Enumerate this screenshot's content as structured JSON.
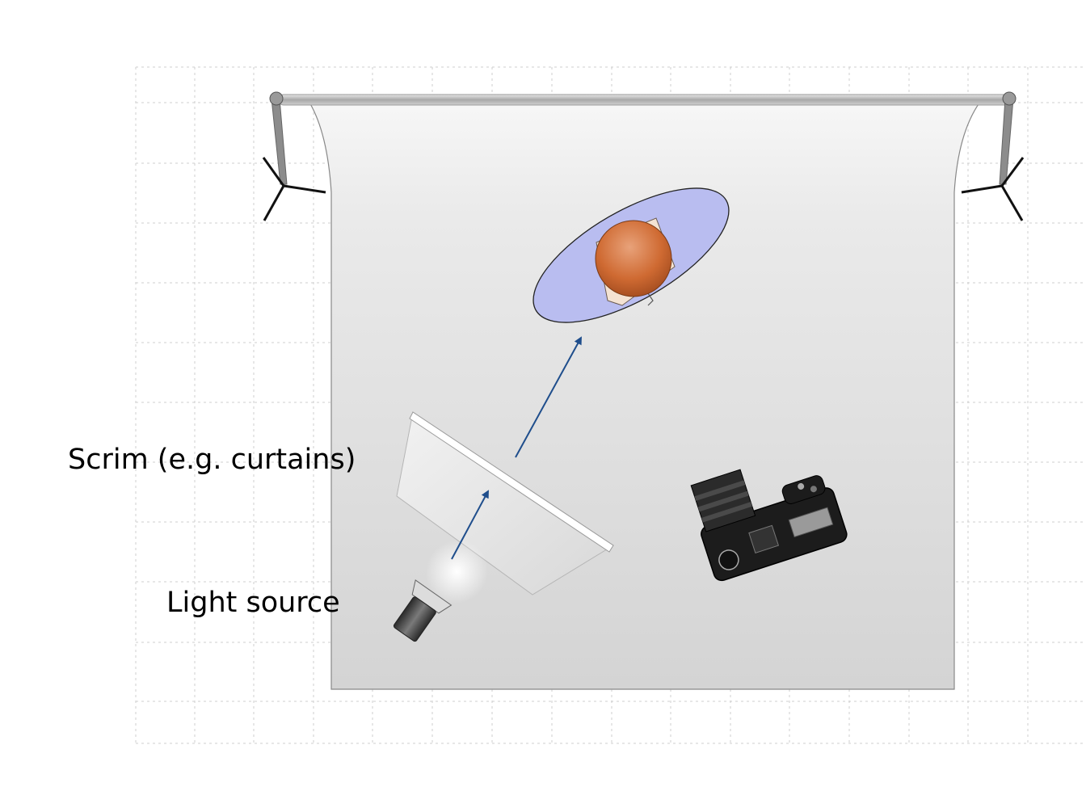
{
  "diagram": {
    "type": "studio-lighting-setup",
    "labels": {
      "scrim": "Scrim (e.g. curtains)",
      "light_source": "Light source"
    },
    "elements": [
      "background-paper",
      "backdrop-stand-left",
      "backdrop-stand-right",
      "subject",
      "scrim-panel",
      "light-source",
      "camera",
      "light-arrow-to-scrim",
      "light-arrow-to-subject"
    ],
    "colors": {
      "grid": "#c8c8c8",
      "backdrop_top": "#f4f4f4",
      "backdrop_bottom": "#d6d6d6",
      "subject_head": "#c8622a",
      "subject_shadow_ellipse": "#b9bdf0",
      "arrow": "#1f4e8c",
      "camera_body": "#1c1c1c",
      "light_body": "#4a4a4a"
    }
  }
}
